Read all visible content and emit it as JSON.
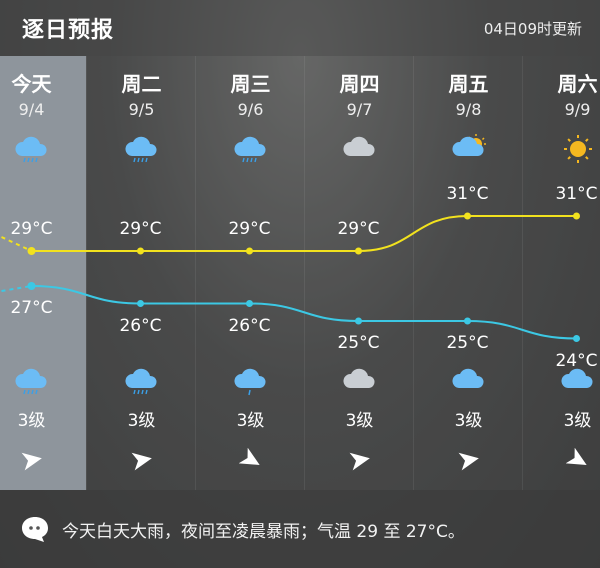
{
  "header": {
    "title": "逐日预报",
    "updated": "04日09时更新"
  },
  "colors": {
    "high_line": "#f2e21e",
    "low_line": "#3cc8e4",
    "today_bg": "#8e959c"
  },
  "days": [
    {
      "day": "今天",
      "date": "9/4",
      "day_icon": "rain-cloud-icon",
      "high": "29°C",
      "high_val": 29,
      "low": "27°C",
      "low_val": 27,
      "night_icon": "rain-cloud-icon",
      "wind": "3级",
      "wind_dir": "arrow-right-icon",
      "today": true
    },
    {
      "day": "周二",
      "date": "9/5",
      "day_icon": "rain-cloud-icon",
      "high": "29°C",
      "high_val": 29,
      "low": "26°C",
      "low_val": 26,
      "night_icon": "rain-cloud-icon",
      "wind": "3级",
      "wind_dir": "arrow-right-icon"
    },
    {
      "day": "周三",
      "date": "9/6",
      "day_icon": "rain-cloud-icon",
      "high": "29°C",
      "high_val": 29,
      "low": "26°C",
      "low_val": 26,
      "night_icon": "drizzle-cloud-icon",
      "wind": "3级",
      "wind_dir": "arrow-down-right-icon"
    },
    {
      "day": "周四",
      "date": "9/7",
      "day_icon": "cloud-icon",
      "high": "29°C",
      "high_val": 29,
      "low": "25°C",
      "low_val": 25,
      "night_icon": "cloud-icon",
      "wind": "3级",
      "wind_dir": "arrow-right-icon"
    },
    {
      "day": "周五",
      "date": "9/8",
      "day_icon": "partly-sunny-icon",
      "high": "31°C",
      "high_val": 31,
      "low": "25°C",
      "low_val": 25,
      "night_icon": "partly-cloudy-night-icon",
      "wind": "3级",
      "wind_dir": "arrow-right-icon"
    },
    {
      "day": "周六",
      "date": "9/9",
      "day_icon": "sun-icon",
      "high": "31°C",
      "high_val": 31,
      "low": "24°C",
      "low_val": 24,
      "night_icon": "partly-cloudy-night-icon",
      "wind": "3级",
      "wind_dir": "arrow-down-right-icon"
    }
  ],
  "footer": {
    "icon": "chat-bubble-icon",
    "summary": "今天白天大雨，夜间至凌晨暴雨；气温 29 至 27°C。"
  }
}
